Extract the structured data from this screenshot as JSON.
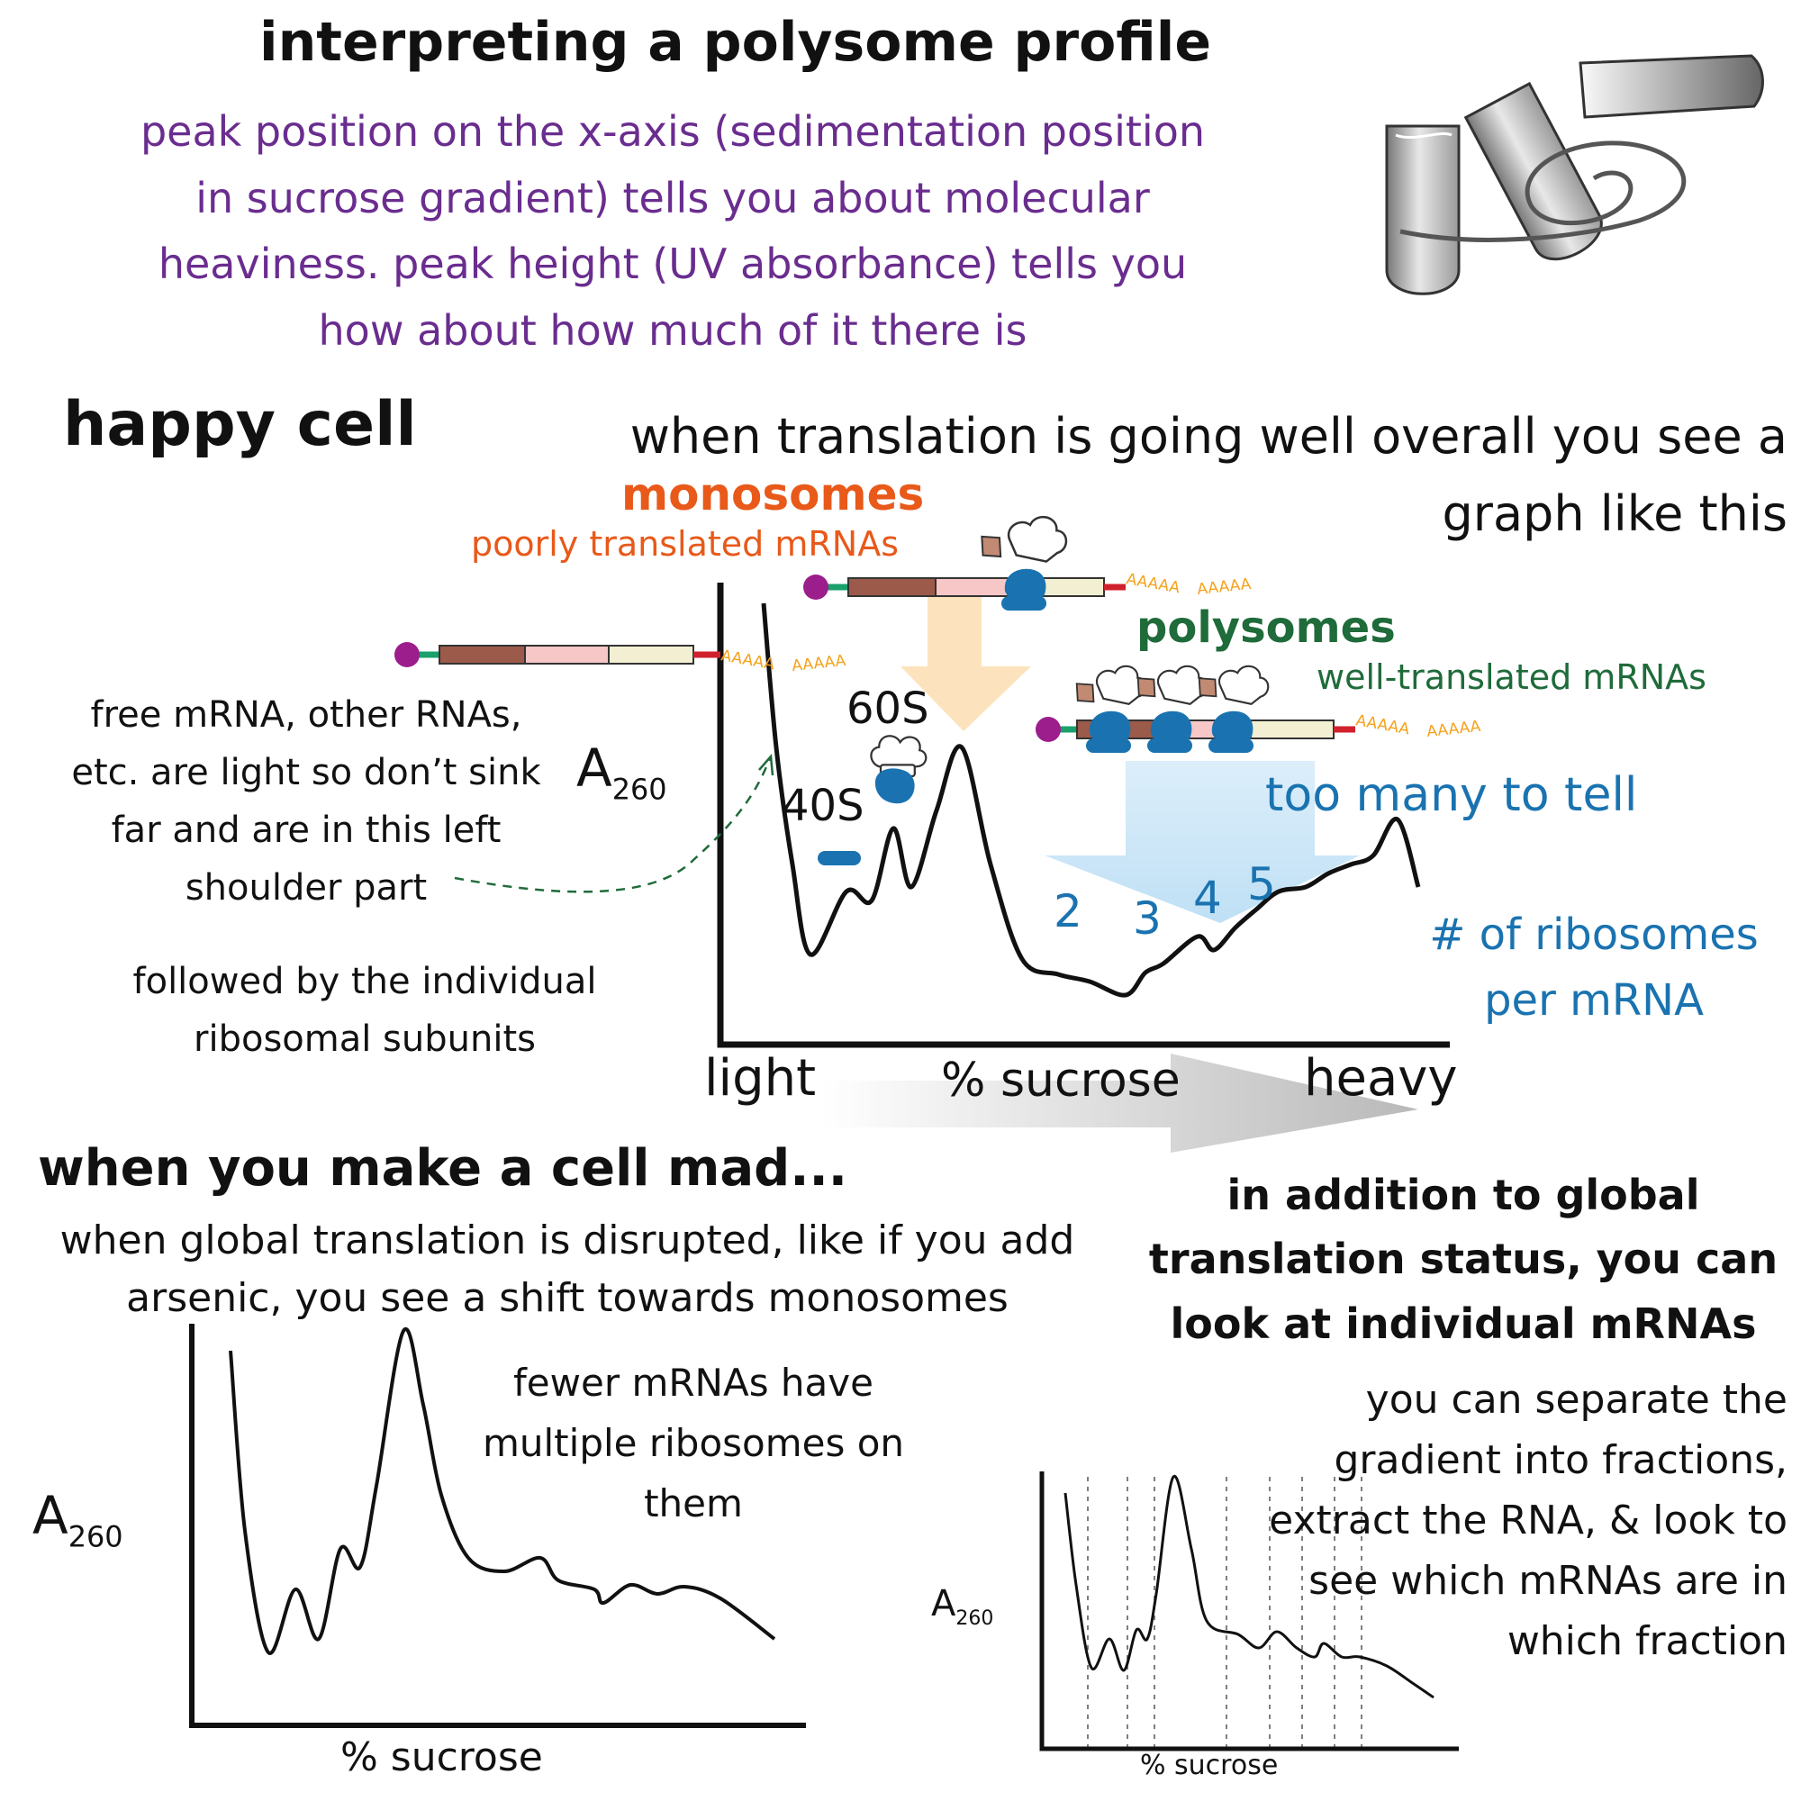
{
  "header": {
    "title": "interpreting a polysome profile",
    "intro_lines": [
      "peak position on the x-axis (sedimentation position",
      "in sucrose gradient) tells you about molecular",
      "heaviness. peak height (UV absorbance) tells you",
      "how about how much of it there is"
    ]
  },
  "happy": {
    "heading": "happy cell",
    "desc_lines": [
      "when translation is going well overall you see a",
      "graph like this"
    ],
    "monosomes_label": "monosomes",
    "monosomes_sub": "poorly translated mRNAs",
    "polysomes_label": "polysomes",
    "polysomes_sub": "well-translated mRNAs",
    "free_note_lines": [
      "free mRNA, other RNAs,",
      "etc. are light so don’t sink",
      "far and are in this left",
      "shoulder part"
    ],
    "subunit_note_lines": [
      "followed by the individual",
      "ribosomal subunits"
    ],
    "too_many": "too many to tell",
    "per_mrna_lines": [
      "# of ribosomes",
      "per mRNA"
    ],
    "y_label": "A",
    "y_sub": "260",
    "x_left": "light",
    "x_mid": "% sucrose",
    "x_right": "heavy",
    "peak_labels": {
      "s40": "40S",
      "s60": "60S"
    },
    "polysome_numbers": [
      "2",
      "3",
      "4",
      "5"
    ],
    "polyA": "AAAAA",
    "polyA2": "AAAAA"
  },
  "mad": {
    "heading": "when you make a cell mad...",
    "desc_lines": [
      "when global translation is disrupted, like if you add",
      "arsenic, you see a shift towards monosomes"
    ],
    "note_lines": [
      "fewer mRNAs have",
      "multiple ribosomes on",
      "them"
    ],
    "y_label": "A",
    "y_sub": "260",
    "x_label": "% sucrose"
  },
  "individual": {
    "heading_lines": [
      "in addition to global",
      "translation status, you can",
      "look at individual mRNAs"
    ],
    "desc_lines": [
      "you can separate the",
      "gradient into fractions,",
      "extract the RNA,  & look to",
      "see which mRNAs are in",
      "which fraction"
    ],
    "y_label": "A",
    "y_sub": "260",
    "x_label": "% sucrose"
  },
  "colors": {
    "purple": "#6a2d8f",
    "orange": "#e8591a",
    "green": "#1f6b3a",
    "blue": "#1a73b0",
    "ribosome_blue": "#1a73b0",
    "cap": "#9b1e8c",
    "cds_brown": "#9b5a4a",
    "cds_pink": "#f7c6c6",
    "cds_cream": "#f2efd2",
    "stop_red": "#d0202e",
    "utr_green": "#1aa06a",
    "polyA_orange": "#f5a11a"
  },
  "icons": [
    "test-tube-icon",
    "spiral-icon",
    "chef-hat-icon",
    "ribosome-icon",
    "mrna-icon"
  ]
}
